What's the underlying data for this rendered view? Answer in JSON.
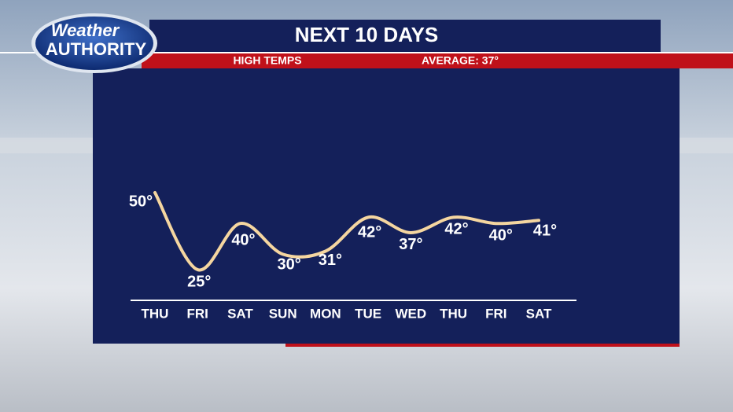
{
  "branding": {
    "line1": "Weather",
    "line2": "AUTHORITY"
  },
  "chart_data": {
    "type": "line",
    "title": "NEXT 10 DAYS",
    "subtitle": "HIGH TEMPS",
    "annotation": "AVERAGE: 37°",
    "categories": [
      "THU",
      "FRI",
      "SAT",
      "SUN",
      "MON",
      "TUE",
      "WED",
      "THU",
      "FRI",
      "SAT"
    ],
    "series": [
      {
        "name": "High temps",
        "color": "#f5d6a0",
        "values": [
          50,
          25,
          40,
          30,
          31,
          42,
          37,
          42,
          40,
          41
        ],
        "value_labels": [
          "50°",
          "25°",
          "40°",
          "30°",
          "31°",
          "42°",
          "37°",
          "42°",
          "40°",
          "41°"
        ]
      }
    ]
  }
}
